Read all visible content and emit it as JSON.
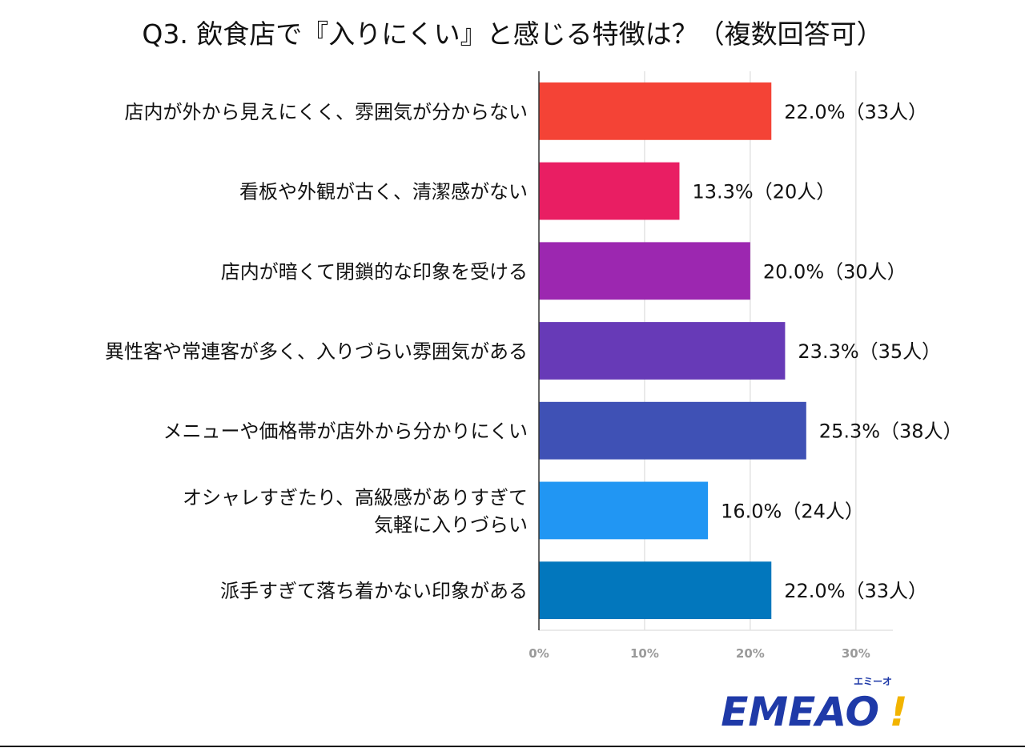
{
  "chart_data": {
    "type": "bar",
    "orientation": "horizontal",
    "title": "Q3. 飲食店で『入りにくい』と感じる特徴は？（複数回答可）",
    "categories": [
      [
        "店内が外から見えにくく、雰囲気が分からない"
      ],
      [
        "看板や外観が古く、清潔感がない"
      ],
      [
        "店内が暗くて閉鎖的な印象を受ける"
      ],
      [
        "異性客や常連客が多く、入りづらい雰囲気がある"
      ],
      [
        "メニューや価格帯が店外から分かりにくい"
      ],
      [
        "オシャレすぎたり、高級感がありすぎて",
        "気軽に入りづらい"
      ],
      [
        "派手すぎて落ち着かない印象がある"
      ]
    ],
    "values": [
      22.0,
      13.3,
      20.0,
      23.3,
      25.3,
      16.0,
      22.0
    ],
    "data_labels": [
      "22.0%（33人）",
      "13.3%（20人）",
      "20.0%（30人）",
      "23.3%（35人）",
      "25.3%（38人）",
      "16.0%（24人）",
      "22.0%（33人）"
    ],
    "colors": [
      "#f44336",
      "#e91e63",
      "#9c27b0",
      "#673ab7",
      "#3f51b5",
      "#2196f3",
      "#0277bd"
    ],
    "xlim": [
      0,
      33.5
    ],
    "xticks": [
      0,
      10,
      20,
      30
    ],
    "xtick_labels": [
      "0%",
      "10%",
      "20%",
      "30%"
    ],
    "grid": true,
    "legend": "none"
  },
  "logo": {
    "text": "EMEAO",
    "mark": "!",
    "kana": "エミーオ"
  }
}
